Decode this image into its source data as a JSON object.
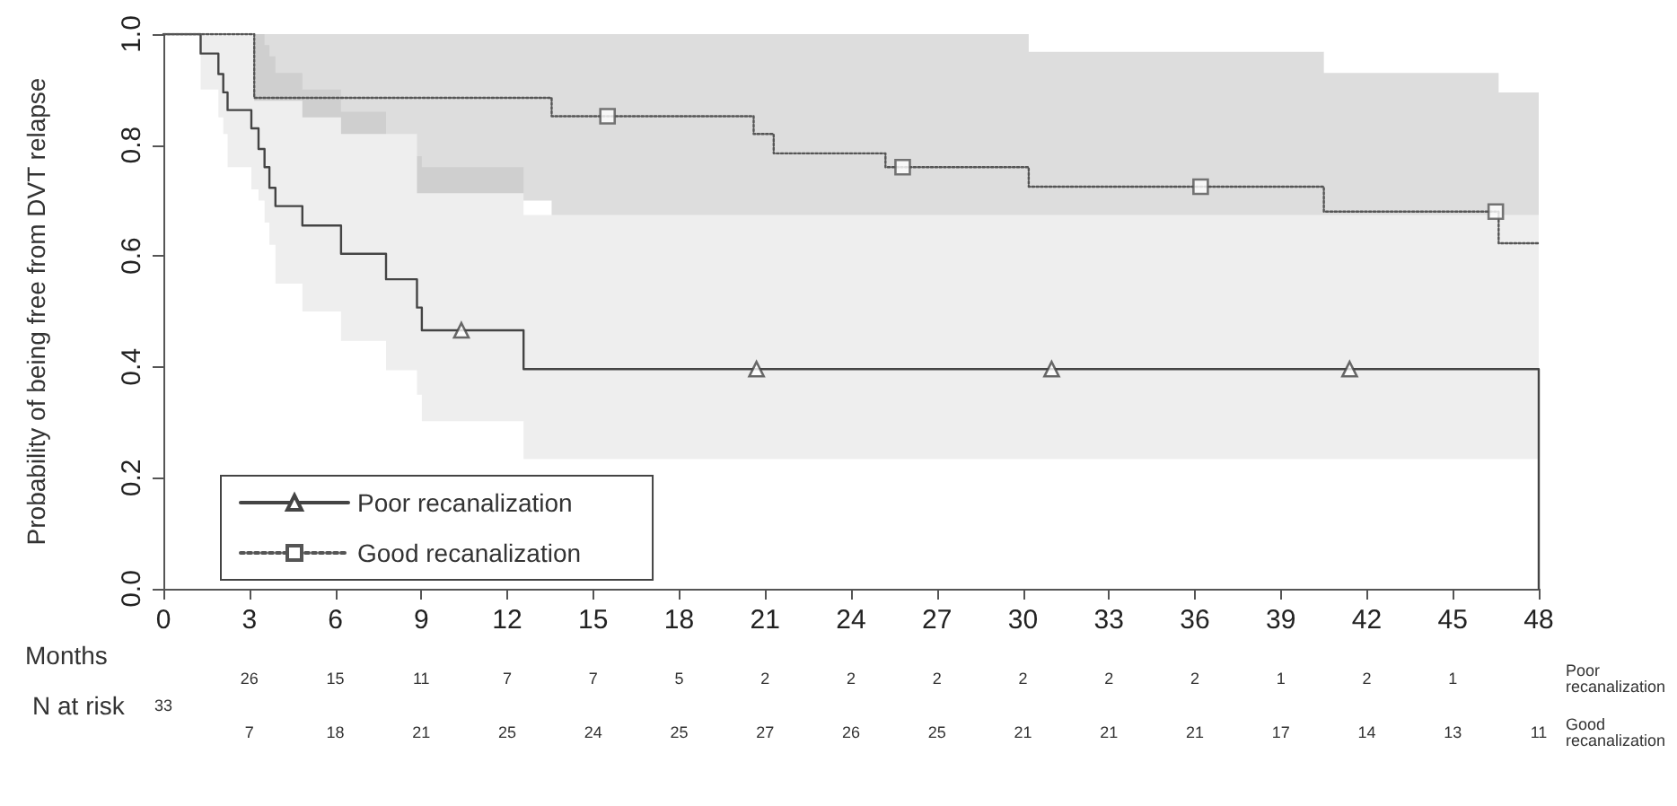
{
  "chart_data": {
    "type": "step",
    "ylabel": "Probability of being free from DVT relapse",
    "xlabel": "Months",
    "xlim": [
      0,
      48
    ],
    "xticks": [
      0,
      3,
      6,
      9,
      12,
      15,
      18,
      21,
      24,
      27,
      30,
      33,
      36,
      39,
      42,
      45,
      48
    ],
    "ylim": [
      0,
      1
    ],
    "yticks": [
      {
        "value": 0,
        "label": "0.0"
      },
      {
        "value": 0.2,
        "label": "0.2"
      },
      {
        "value": 0.4,
        "label": "0.4"
      },
      {
        "value": 0.6,
        "label": "0.6"
      },
      {
        "value": 0.8,
        "label": "0.8"
      },
      {
        "value": 1,
        "label": "1.0"
      }
    ],
    "grid": false,
    "legend": "bottom left",
    "series": [
      {
        "name": "Poor recanalization",
        "color": "#444444",
        "line_style": "solid",
        "x": [
          0,
          1.3,
          1.92,
          2.09,
          2.24,
          3.07,
          3.32,
          3.53,
          3.7,
          3.91,
          4.85,
          6.2,
          7.77,
          8.85,
          9.02,
          12.57,
          48
        ],
        "values": [
          1,
          0.965,
          0.928,
          0.895,
          0.863,
          0.83,
          0.793,
          0.76,
          0.723,
          0.69,
          0.655,
          0.604,
          0.558,
          0.507,
          0.466,
          0.396,
          0
        ],
        "lower": [
          1,
          0.9,
          0.85,
          0.82,
          0.76,
          0.72,
          0.7,
          0.66,
          0.62,
          0.55,
          0.5,
          0.447,
          0.394,
          0.35,
          0.302,
          0.234,
          0.234
        ],
        "upper": [
          1,
          1,
          1,
          1,
          1,
          1,
          1,
          0.98,
          0.96,
          0.93,
          0.9,
          0.86,
          0.82,
          0.78,
          0.76,
          0.674,
          0.674
        ]
      },
      {
        "name": "Good recanalization",
        "color": "#555555",
        "line_style": "dotted",
        "x": [
          0,
          3.17,
          4.85,
          6.2,
          8.85,
          12.57,
          13.55,
          20.6,
          21.3,
          25.2,
          30.2,
          40.5,
          46.6,
          48
        ],
        "values": [
          1,
          0.885,
          0.885,
          0.885,
          0.885,
          0.885,
          0.852,
          0.82,
          0.785,
          0.76,
          0.725,
          0.68,
          0.623,
          0.623
        ],
        "lower": [
          1,
          0.88,
          0.85,
          0.82,
          0.713,
          0.7,
          0.674,
          0.674,
          0.674,
          0.674,
          0.674,
          0.674,
          0.674,
          0.674
        ],
        "upper": [
          1,
          1,
          1,
          1,
          1,
          1,
          1,
          1,
          1,
          1,
          0.968,
          0.93,
          0.895,
          0.895
        ]
      },
      {
        "type": "scatter",
        "marker": "triangle",
        "color": "#444444",
        "x": [
          10.4,
          20.7,
          31.0,
          41.4
        ],
        "values": [
          0.466,
          0.396,
          0.396,
          0.396
        ]
      },
      {
        "type": "scatter",
        "marker": "square",
        "color": "#555555",
        "x": [
          15.5,
          25.8,
          36.2,
          46.5
        ],
        "values": [
          0.852,
          0.76,
          0.725,
          0.68
        ]
      }
    ],
    "annotations": [
      "N at risk",
      "33",
      "26 15 11 7 7 5 2 2 2 2 2 2 1 2 1",
      "Poor recanalization",
      "7 18 21 25 24 25 27 26 25 21 21 21 17 14 13 11",
      "Good recanalization"
    ]
  }
}
